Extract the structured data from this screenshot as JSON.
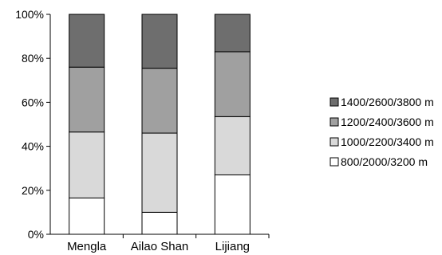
{
  "chart_data": {
    "type": "bar",
    "stacked": true,
    "percent": true,
    "categories": [
      "Mengla",
      "Ailao Shan",
      "Lijiang"
    ],
    "series": [
      {
        "name": "800/2000/3200 m",
        "color": "#ffffff",
        "values": [
          16.5,
          10,
          27
        ]
      },
      {
        "name": "1000/2200/3400 m",
        "color": "#d9d9d9",
        "values": [
          30,
          36,
          26.5
        ]
      },
      {
        "name": "1200/2400/3600 m",
        "color": "#a0a0a0",
        "values": [
          29.5,
          29.5,
          29.5
        ]
      },
      {
        "name": "1400/2600/3800 m",
        "color": "#6e6e6e",
        "values": [
          24,
          24.5,
          17
        ]
      }
    ],
    "yticks": [
      "0%",
      "20%",
      "40%",
      "60%",
      "80%",
      "100%"
    ],
    "ylim": [
      0,
      100
    ],
    "grid": false,
    "legend": "right"
  }
}
